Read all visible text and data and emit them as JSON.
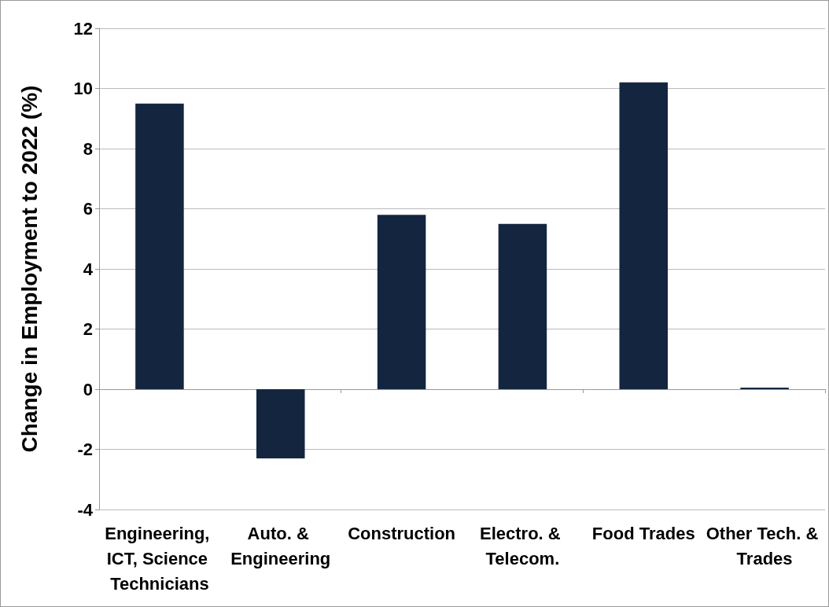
{
  "chart_data": {
    "type": "bar",
    "ylabel": "Change in Employment to 2022 (%)",
    "categories": [
      "Engineering, ICT, Science Technicians",
      "Auto. & Engineering",
      "Construction",
      "Electro. & Telecom.",
      "Food Trades",
      "Other Tech. & Trades"
    ],
    "values": [
      9.5,
      -2.3,
      5.8,
      5.5,
      10.2,
      0.05
    ],
    "color": "#14263f",
    "ylim": [
      -4,
      12
    ],
    "yticks": [
      -4,
      -2,
      0,
      2,
      4,
      6,
      8,
      10,
      12
    ],
    "grid": "y"
  }
}
